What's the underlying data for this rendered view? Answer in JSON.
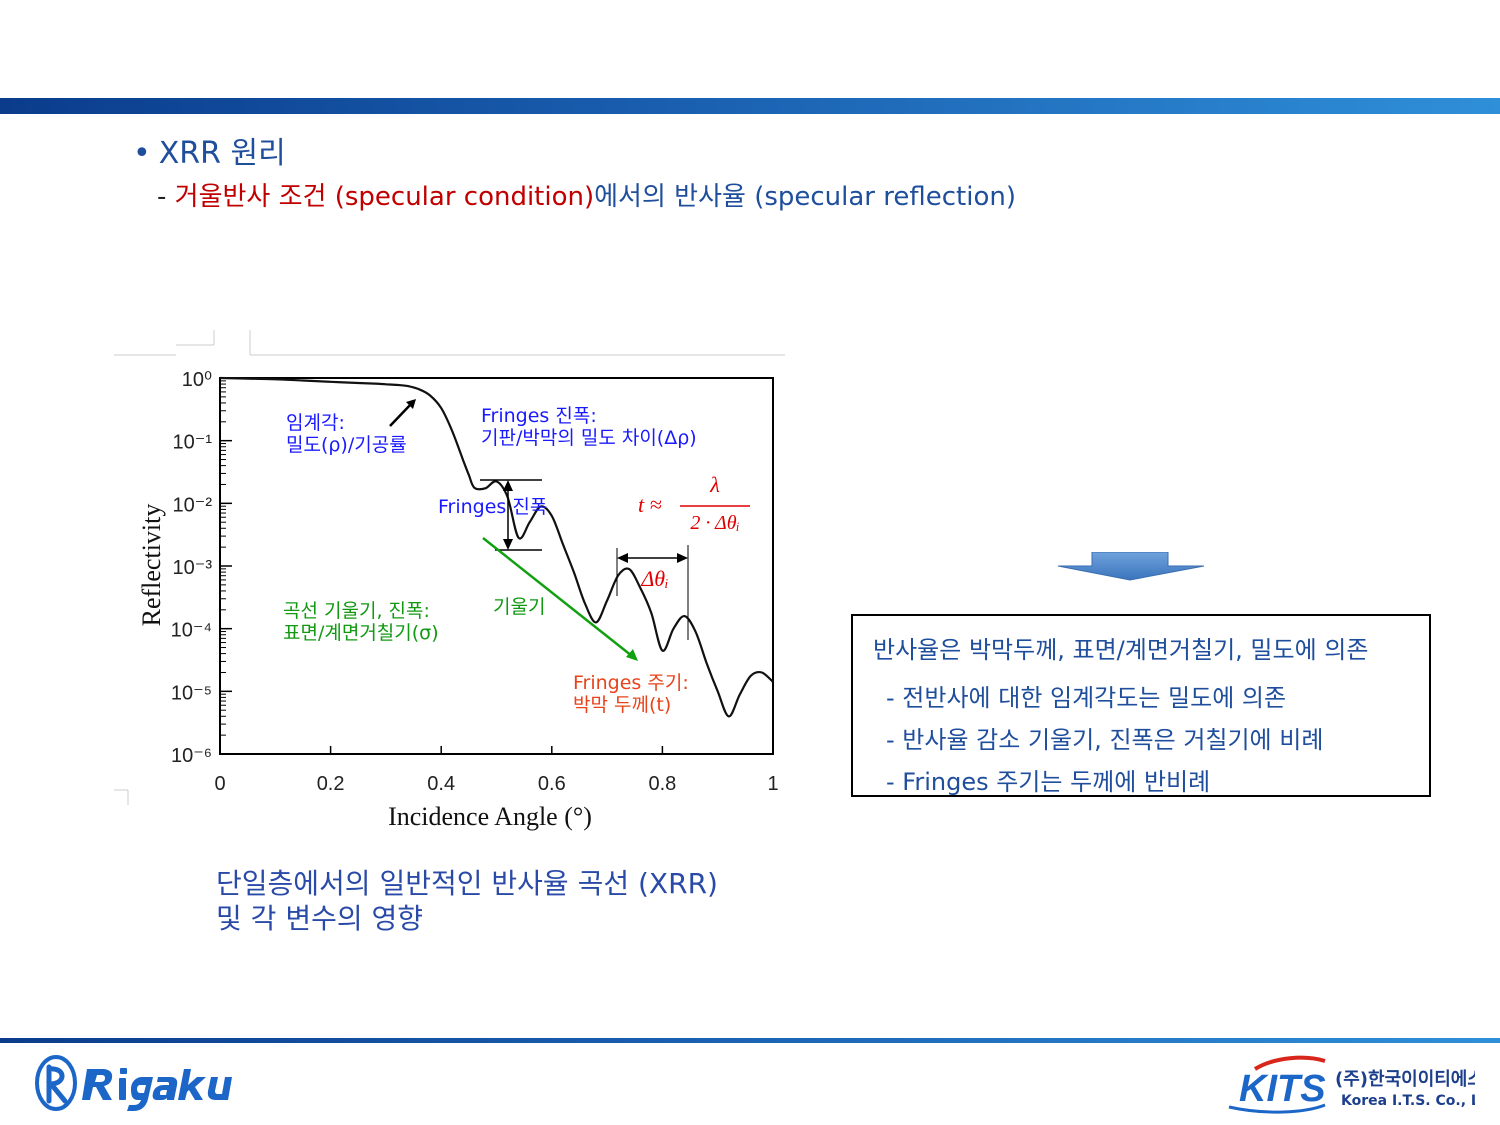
{
  "slide": {
    "title_bullet": "•",
    "title": "XRR 원리",
    "subtitle": {
      "dash": "- ",
      "red_part": "거울반사 조건 (specular condition)",
      "blue_part": "에서의 반사율 (specular reflection)"
    },
    "caption_line1": "단일층에서의 일반적인 반사율 곡선 (XRR)",
    "caption_line2": "및 각 변수의 영향"
  },
  "info_box": {
    "head": "반사율은 박막두께, 표면/계면거칠기, 밀도에 의존",
    "lines": [
      "- 전반사에 대한 임계각도는 밀도에 의존",
      "- 반사율 감소 기울기, 진폭은 거칠기에 비례",
      "- Fringes 주기는 두께에 반비례"
    ]
  },
  "annotations": {
    "critical_angle_1": "임계각:",
    "critical_angle_2": "밀도(ρ)/기공률",
    "fringe_amp_title_1": "Fringes 진폭:",
    "fringe_amp_title_2": "기판/박막의 밀도 차이(Δρ)",
    "fringe_amp_label": "Fringes 진폭",
    "formula": "t ≈ λ / 2·Δθᵢ",
    "formula_t": "t ≈",
    "formula_num": "λ",
    "formula_den": "2 · Δθᵢ",
    "delta_theta": "Δθᵢ",
    "slope_desc_1": "곡선 기울기, 진폭:",
    "slope_desc_2": "표면/계면거칠기(σ)",
    "slope_label": "기울기",
    "period_1": "Fringes 주기:",
    "period_2": "박막 두께(t)"
  },
  "colors": {
    "title_blue": "#1f4e9c",
    "red": "#c00000",
    "annotation_blue": "#1a1aff",
    "annotation_green": "#119911",
    "annotation_orange": "#e8431a",
    "formula_red": "#e00000",
    "slope_arrow": "#11a011",
    "down_arrow": "#4a86c8"
  },
  "chart_data": {
    "type": "line",
    "xlabel": "Incidence Angle (°)",
    "ylabel": "Reflectivity",
    "xlim": [
      0,
      1
    ],
    "ylim_log10": [
      -6,
      0
    ],
    "x_ticks": [
      "0",
      "0.2",
      "0.4",
      "0.6",
      "0.8",
      "1"
    ],
    "y_ticks": [
      "10⁰",
      "10⁻¹",
      "10⁻²",
      "10⁻³",
      "10⁻⁴",
      "10⁻⁵",
      "10⁻⁶"
    ],
    "y_scale": "log",
    "series": [
      {
        "x": [
          0.0,
          0.05,
          0.1,
          0.15,
          0.2,
          0.25,
          0.28,
          0.3,
          0.32,
          0.34,
          0.36,
          0.38,
          0.4,
          0.42,
          0.44,
          0.45,
          0.46,
          0.48,
          0.5,
          0.52,
          0.54,
          0.56,
          0.58,
          0.6,
          0.62,
          0.64,
          0.66,
          0.68,
          0.7,
          0.72,
          0.74,
          0.76,
          0.78,
          0.8,
          0.82,
          0.84,
          0.86,
          0.88,
          0.9,
          0.92,
          0.94,
          0.96,
          0.98,
          1.0
        ],
        "log10_y": [
          0.0,
          -0.01,
          -0.02,
          -0.04,
          -0.06,
          -0.08,
          -0.09,
          -0.1,
          -0.11,
          -0.13,
          -0.18,
          -0.28,
          -0.48,
          -0.85,
          -1.32,
          -1.55,
          -1.75,
          -1.76,
          -1.65,
          -1.9,
          -2.55,
          -2.3,
          -2.05,
          -2.2,
          -2.65,
          -3.1,
          -3.6,
          -3.9,
          -3.55,
          -3.15,
          -3.05,
          -3.35,
          -3.75,
          -4.35,
          -4.0,
          -3.8,
          -4.05,
          -4.55,
          -5.0,
          -5.4,
          -5.05,
          -4.75,
          -4.7,
          -4.85
        ]
      }
    ],
    "grid": false
  }
}
